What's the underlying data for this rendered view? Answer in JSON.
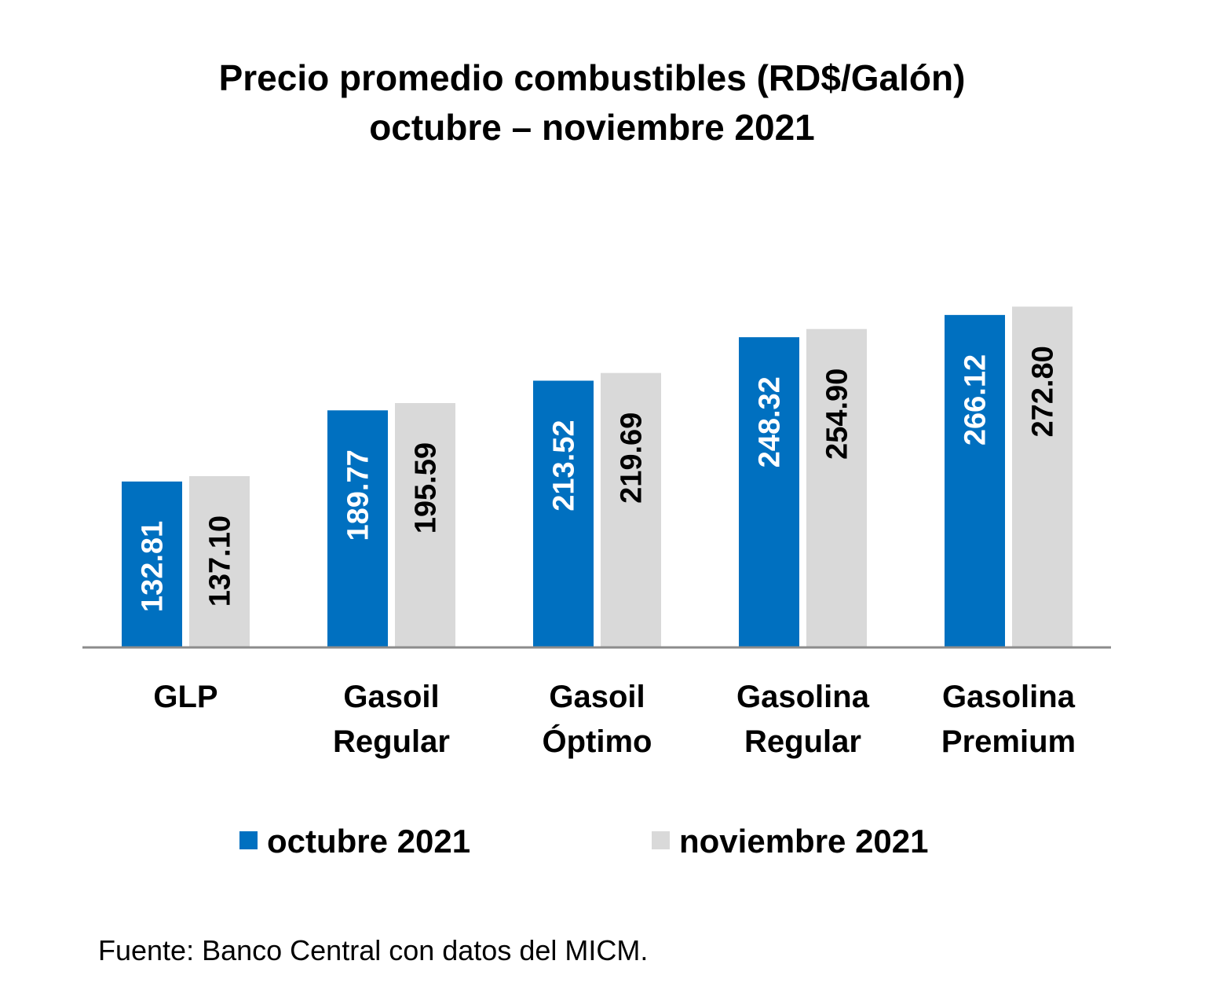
{
  "chart_data": {
    "type": "bar",
    "title": [
      "Precio promedio combustibles (RD$/Galón)",
      "octubre – noviembre 2021"
    ],
    "categories": [
      [
        "GLP"
      ],
      [
        "Gasoil",
        "Regular"
      ],
      [
        "Gasoil",
        "Óptimo"
      ],
      [
        "Gasolina",
        "Regular"
      ],
      [
        "Gasolina",
        "Premium"
      ]
    ],
    "series": [
      {
        "name": "octubre 2021",
        "color": "#0070C0",
        "label_color": "#FFFFFF",
        "values": [
          132.81,
          189.77,
          213.52,
          248.32,
          266.12
        ],
        "labels": [
          "132.81",
          "189.77",
          "213.52",
          "248.32",
          "266.12"
        ]
      },
      {
        "name": "noviembre 2021",
        "color": "#D9D9D9",
        "label_color": "#000000",
        "values": [
          137.1,
          195.59,
          219.69,
          254.9,
          272.8
        ],
        "labels": [
          "137.10",
          "195.59",
          "219.69",
          "254.90",
          "272.80"
        ]
      }
    ],
    "xlabel": "",
    "ylabel": "",
    "ylim": [
      0,
      300
    ],
    "grid": false,
    "legend": "bottom",
    "axis_color": "#8C8C8C",
    "source": "Fuente: Banco Central con datos del MICM."
  }
}
